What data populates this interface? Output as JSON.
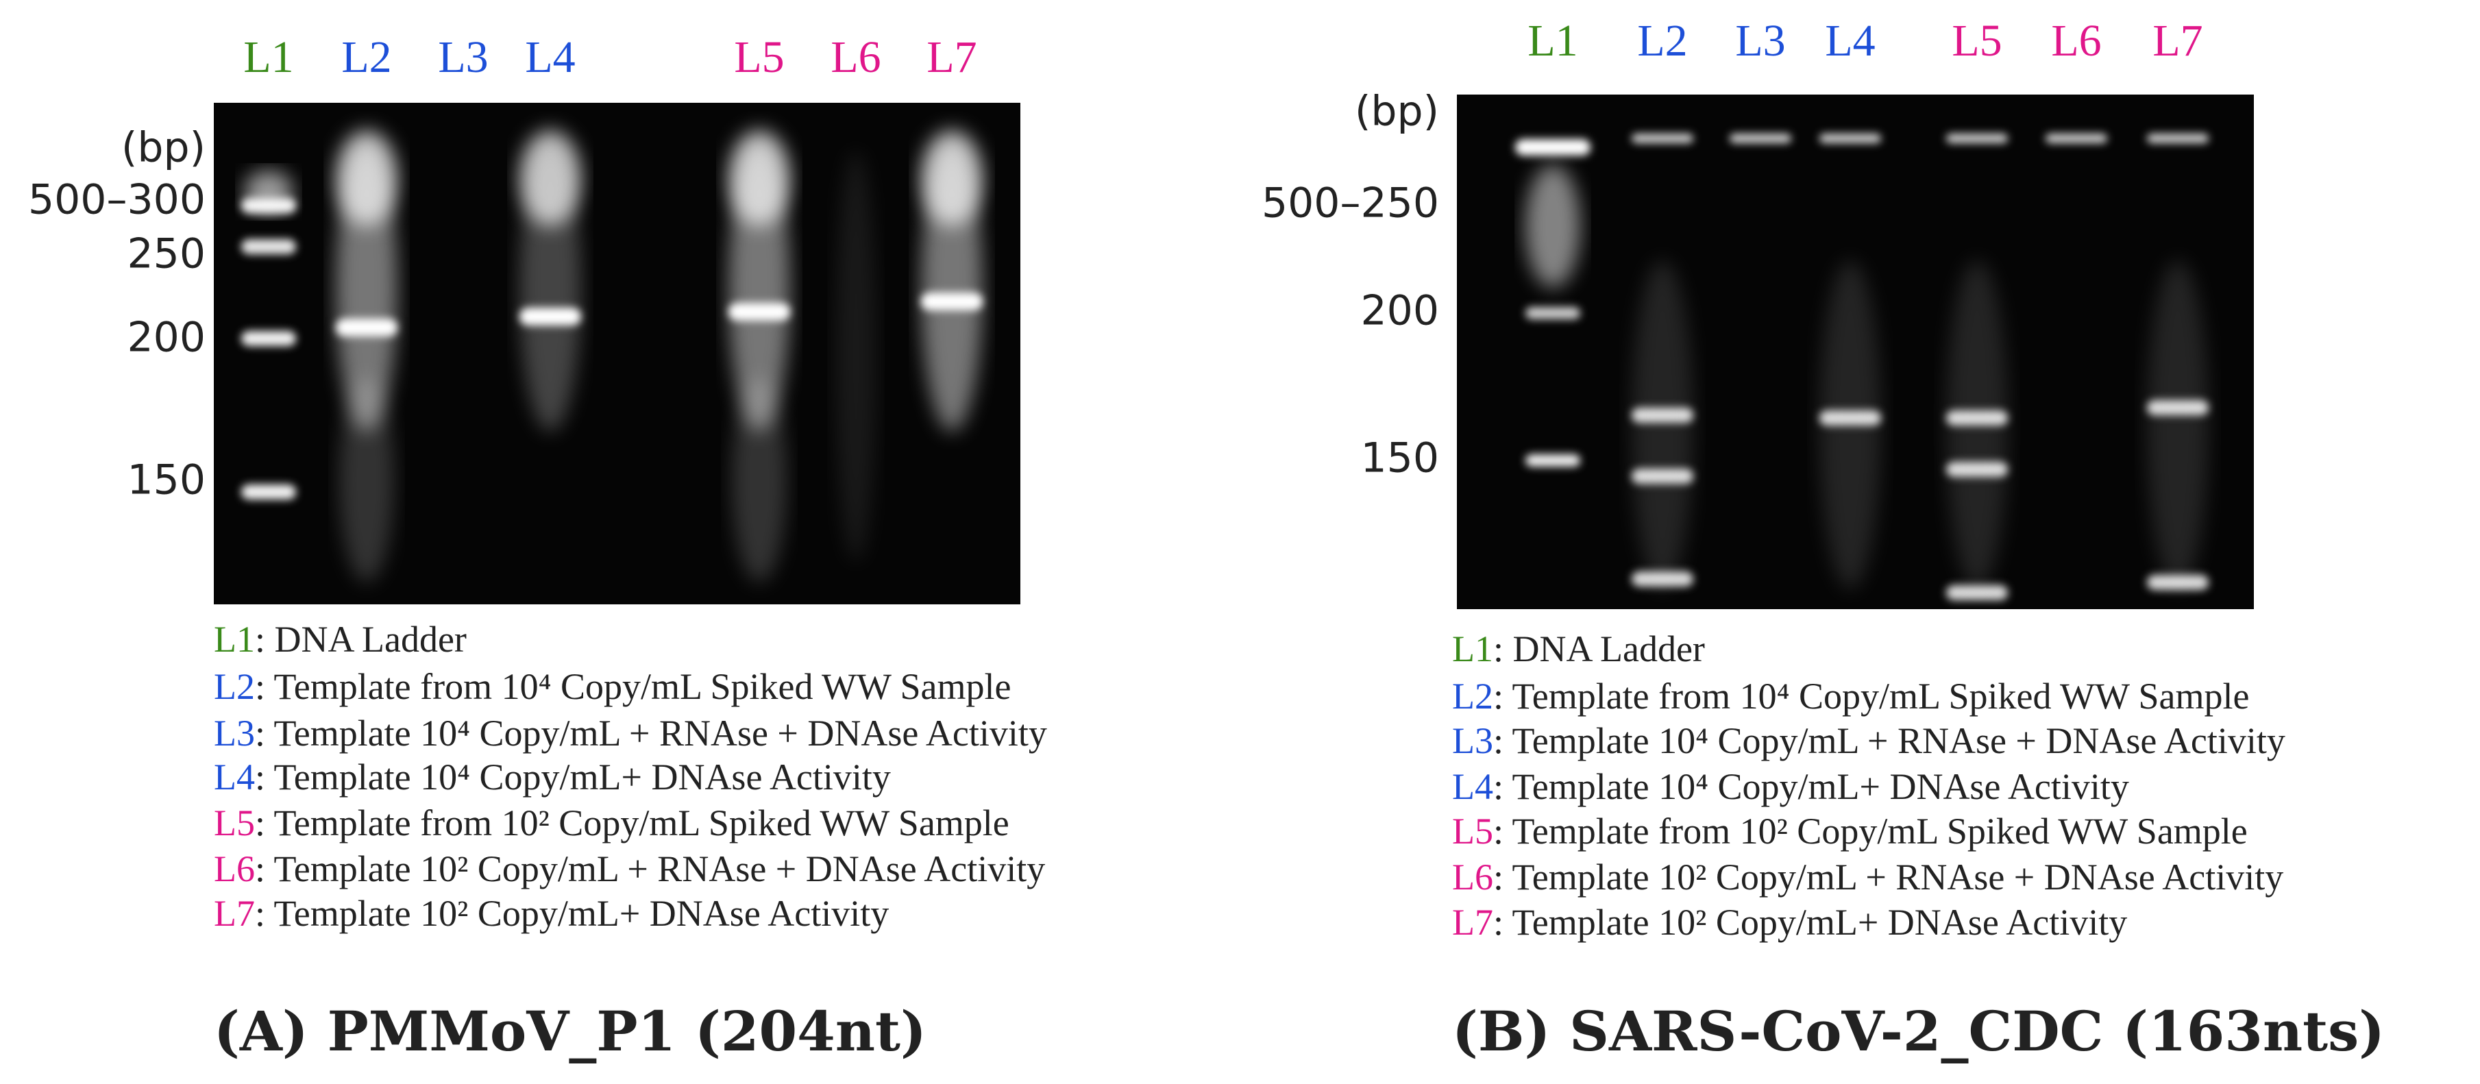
{
  "panel_a": {
    "lanes": [
      "L1",
      "L2",
      "L3",
      "L4",
      "L5",
      "L6",
      "L7"
    ],
    "bp_labels": [
      "(bp)",
      "500–300",
      "250",
      "200",
      "150"
    ],
    "legend": [
      {
        "lane": "L1",
        "text": ": DNA Ladder"
      },
      {
        "lane": "L2",
        "text": ": Template from 10⁴ Copy/mL Spiked WW Sample"
      },
      {
        "lane": "L3",
        "text": ": Template 10⁴ Copy/mL + RNAse + DNAse Activity"
      },
      {
        "lane": "L4",
        "text": ": Template 10⁴ Copy/mL+ DNAse Activity"
      },
      {
        "lane": "L5",
        "text": ": Template from 10² Copy/mL Spiked WW Sample"
      },
      {
        "lane": "L6",
        "text": ": Template 10² Copy/mL + RNAse + DNAse Activity"
      },
      {
        "lane": "L7",
        "text": ": Template 10² Copy/mL+ DNAse Activity"
      }
    ],
    "caption": "(A) PMMoV_P1 (204nt)"
  },
  "panel_b": {
    "lanes": [
      "L1",
      "L2",
      "L3",
      "L4",
      "L5",
      "L6",
      "L7"
    ],
    "bp_labels": [
      "(bp)",
      "500–250",
      "200",
      "150"
    ],
    "legend": [
      {
        "lane": "L1",
        "text": ": DNA Ladder"
      },
      {
        "lane": "L2",
        "text": ": Template from 10⁴ Copy/mL Spiked WW Sample"
      },
      {
        "lane": "L3",
        "text": ": Template 10⁴ Copy/mL + RNAse + DNAse Activity"
      },
      {
        "lane": "L4",
        "text": ": Template 10⁴ Copy/mL+ DNAse Activity"
      },
      {
        "lane": "L5",
        "text": ": Template from 10² Copy/mL Spiked WW Sample"
      },
      {
        "lane": "L6",
        "text": ": Template 10² Copy/mL + RNAse + DNAse Activity"
      },
      {
        "lane": "L7",
        "text": ": Template 10² Copy/mL+ DNAse Activity"
      }
    ],
    "caption": "(B) SARS-CoV-2_CDC (163nts)"
  }
}
